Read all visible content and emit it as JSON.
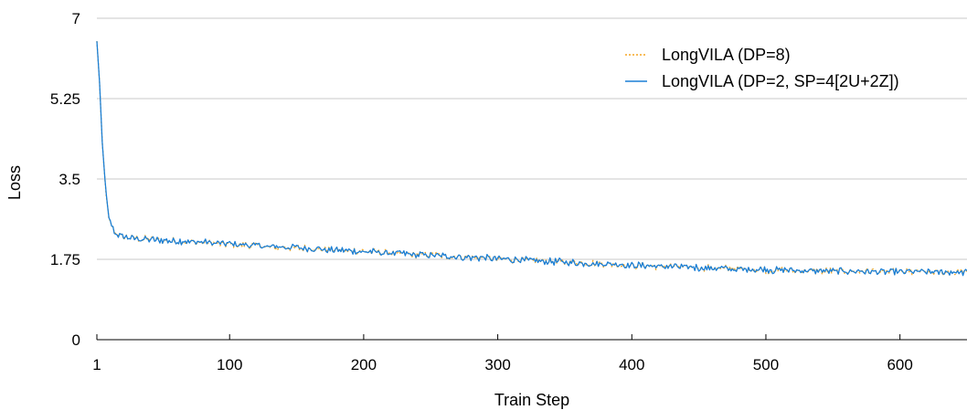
{
  "chart_data": {
    "type": "line",
    "title": "",
    "xlabel": "Train Step",
    "ylabel": "Loss",
    "xlim": [
      1,
      650
    ],
    "ylim": [
      0,
      7
    ],
    "x_ticks": [
      1,
      100,
      200,
      300,
      400,
      500,
      600
    ],
    "y_ticks": [
      0,
      1.75,
      3.5,
      5.25,
      7
    ],
    "y_tick_labels": [
      "0",
      "1.75",
      "3.5",
      "5.25",
      "7"
    ],
    "grid": "horizontal",
    "legend_position": "top-right",
    "curve_profile": {
      "steps": [
        1,
        3,
        5,
        8,
        10,
        15,
        20,
        25,
        40,
        60,
        80,
        100,
        150,
        200,
        250,
        300,
        350,
        400,
        450,
        500,
        550,
        600,
        650
      ],
      "loss": [
        6.5,
        5.6,
        4.3,
        3.1,
        2.6,
        2.3,
        2.26,
        2.22,
        2.18,
        2.15,
        2.12,
        2.08,
        2.0,
        1.92,
        1.84,
        1.76,
        1.69,
        1.62,
        1.57,
        1.52,
        1.49,
        1.48,
        1.47
      ],
      "noise_amplitude": 0.06
    },
    "series": [
      {
        "name": "LongVILA (DP=8)",
        "color": "#f5a623",
        "style": "dotted"
      },
      {
        "name": "LongVILA (DP=2, SP=4[2U+2Z])",
        "color": "#1a7fd6",
        "style": "solid"
      }
    ]
  }
}
